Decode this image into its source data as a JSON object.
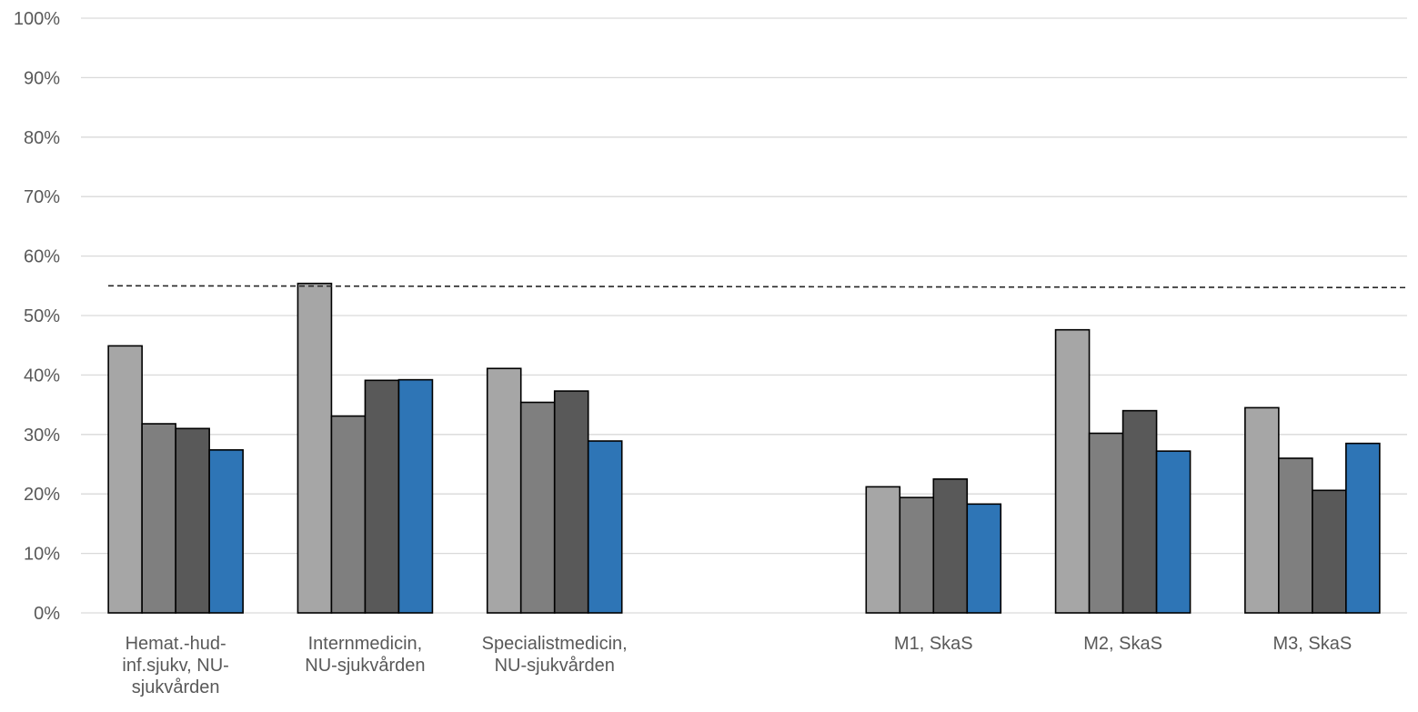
{
  "chart_data": {
    "type": "bar",
    "title": "",
    "xlabel": "",
    "ylabel": "",
    "ylim": [
      0,
      100
    ],
    "y_ticks": [
      "0%",
      "10%",
      "20%",
      "30%",
      "40%",
      "50%",
      "60%",
      "70%",
      "80%",
      "90%",
      "100%"
    ],
    "grid": true,
    "legend": "none",
    "categories": [
      "Hemat.-hud-inf.sjukv, NU-sjukvården",
      "Internmedicin, NU-sjukvården",
      "Specialistmedicin, NU-sjukvården",
      "",
      "M1, SkaS",
      "M2, SkaS",
      "M3, SkaS"
    ],
    "category_lines": [
      [
        "Hemat.-hud-",
        "inf.sjukv, NU-",
        "sjukvården"
      ],
      [
        "Internmedicin,",
        "NU-sjukvården"
      ],
      [
        "Specialistmedicin,",
        "NU-sjukvården"
      ],
      [],
      [
        "M1, SkaS"
      ],
      [
        "M2, SkaS"
      ],
      [
        "M3, SkaS"
      ]
    ],
    "series": [
      {
        "color": "#a6a6a6",
        "values": [
          44.9,
          55.4,
          41.1,
          null,
          21.2,
          47.6,
          34.5
        ]
      },
      {
        "color": "#7f7f7f",
        "values": [
          31.8,
          33.1,
          35.4,
          null,
          19.4,
          30.2,
          26.0
        ]
      },
      {
        "color": "#595959",
        "values": [
          31.0,
          39.1,
          37.3,
          null,
          22.5,
          34.0,
          20.6
        ]
      },
      {
        "color": "#2e75b6",
        "values": [
          27.4,
          39.2,
          28.9,
          null,
          18.3,
          27.2,
          28.5
        ]
      }
    ],
    "reference_line": {
      "y_start": 55.0,
      "y_end": 54.7,
      "style": "dashed",
      "color": "#262626"
    }
  }
}
